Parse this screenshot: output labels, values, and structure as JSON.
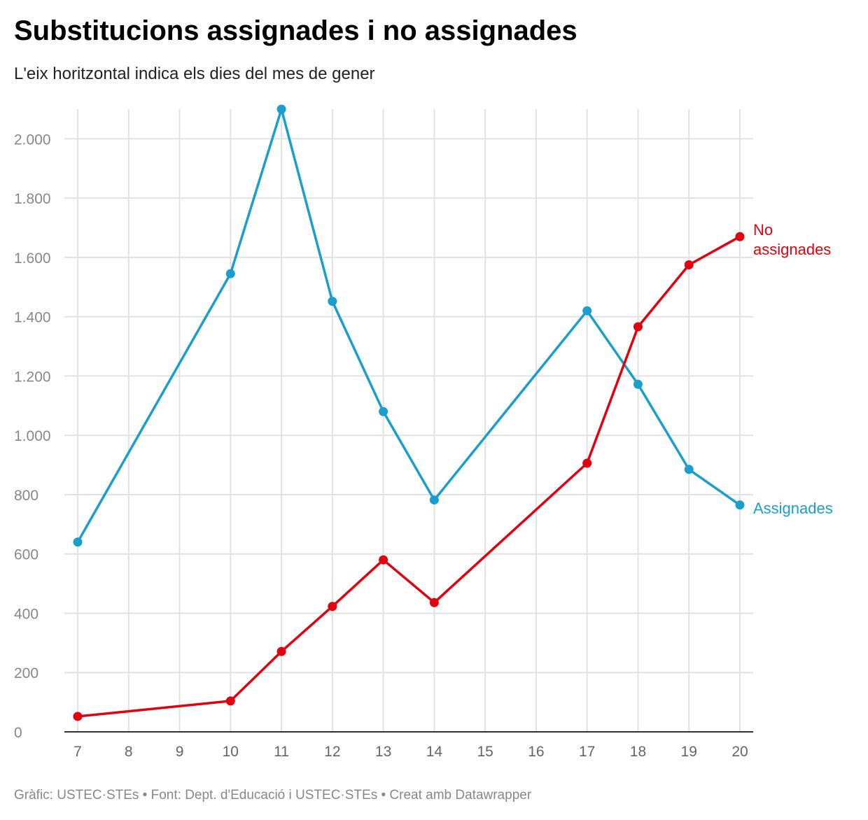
{
  "header": {
    "title": "Substitucions assignades i no assignades",
    "subtitle": "L'eix horitzontal indica els dies del mes de gener"
  },
  "footer": {
    "text": "Gràfic: USTEC·STEs • Font: Dept. d'Educació i USTEC·STEs • Creat amb Datawrapper"
  },
  "chart_data": {
    "type": "line",
    "title": "Substitucions assignades i no assignades",
    "subtitle": "L'eix horitzontal indica els dies del mes de gener",
    "xlim": [
      7,
      20
    ],
    "ylim": [
      0,
      2100
    ],
    "x_ticks": [
      7,
      8,
      9,
      10,
      11,
      12,
      13,
      14,
      15,
      16,
      17,
      18,
      19,
      20
    ],
    "y_ticks": [
      0,
      200,
      400,
      600,
      800,
      1000,
      1200,
      1400,
      1600,
      1800,
      2000
    ],
    "y_tick_labels": [
      "0",
      "200",
      "400",
      "600",
      "800",
      "1.000",
      "1.200",
      "1.400",
      "1.600",
      "1.800",
      "2.000"
    ],
    "grid": true,
    "legend": "direct labels at line ends",
    "series": [
      {
        "name": "Assignades",
        "label_lines": [
          "Assignades"
        ],
        "color": "#1a9fcd",
        "x": [
          7,
          10,
          11,
          12,
          13,
          14,
          17,
          18,
          19,
          20
        ],
        "values": [
          640,
          1545,
          2100,
          1452,
          1080,
          782,
          1420,
          1172,
          885,
          765
        ]
      },
      {
        "name": "No assignades",
        "label_lines": [
          "No",
          "assignades"
        ],
        "color": "#e3000f",
        "x": [
          7,
          10,
          11,
          12,
          13,
          14,
          17,
          18,
          19,
          20
        ],
        "values": [
          52,
          104,
          271,
          423,
          580,
          436,
          906,
          1366,
          1575,
          1670
        ]
      }
    ]
  }
}
